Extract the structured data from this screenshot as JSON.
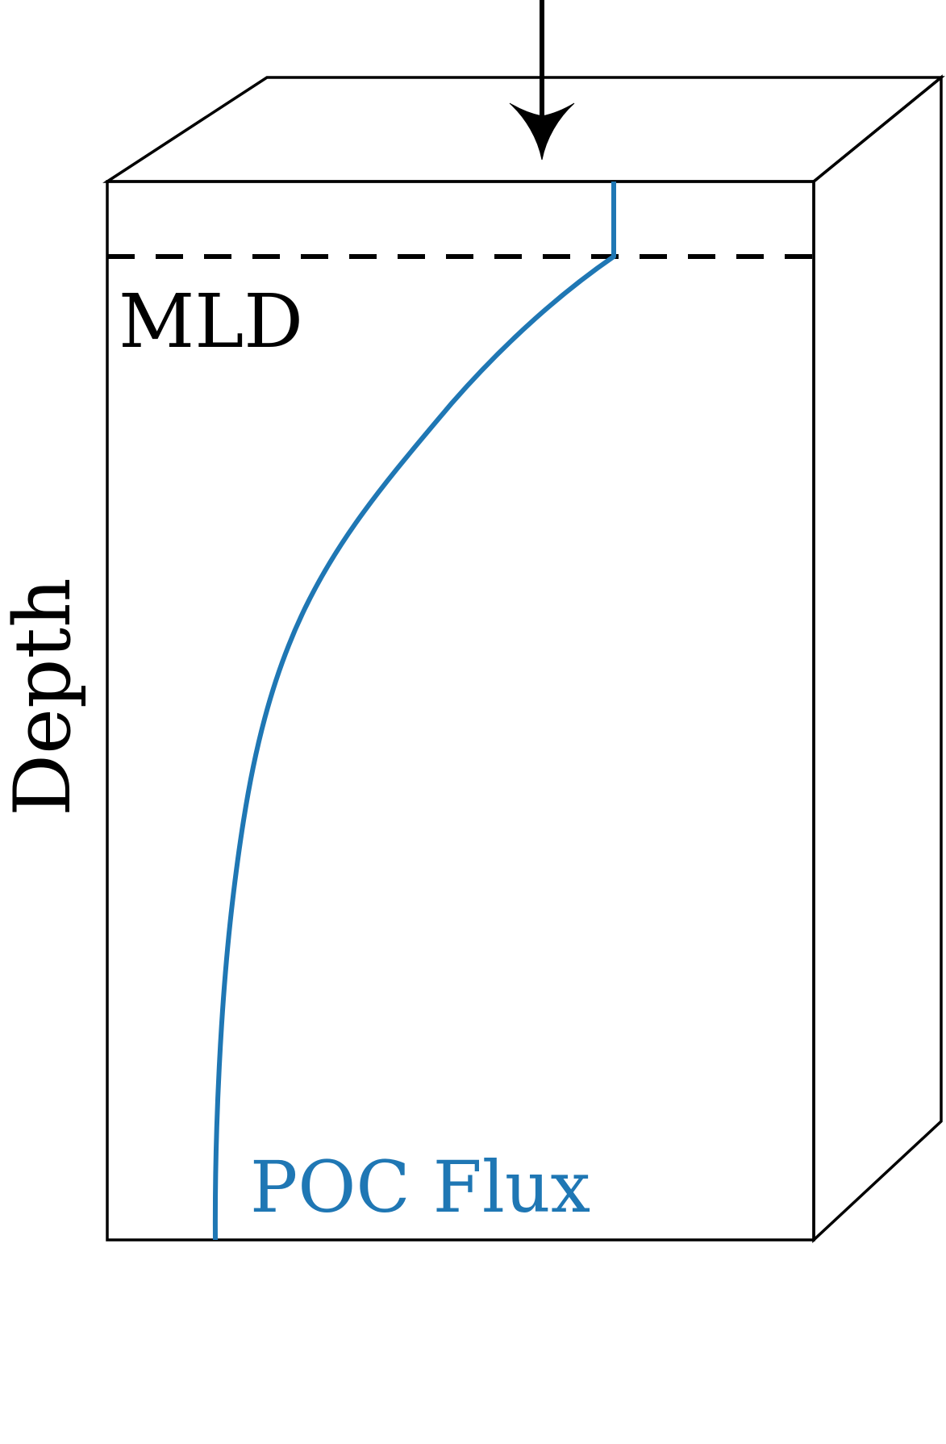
{
  "labels": {
    "mld": "MLD",
    "depth": "Depth",
    "poc_flux": "POC Flux"
  },
  "colors": {
    "outline": "#000000",
    "flux_line": "#1f77b4",
    "background": "#ffffff"
  },
  "icons": {
    "input_arrow": "arrow-down-icon"
  }
}
